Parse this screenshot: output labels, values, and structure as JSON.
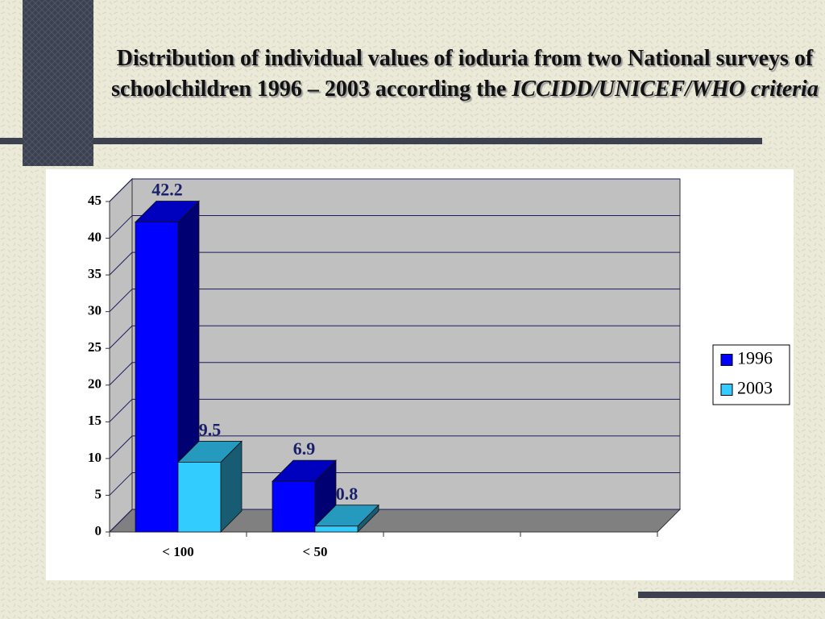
{
  "chart_data": {
    "type": "bar3d",
    "title": {
      "text": "Distribution of individual values of ioduria from two National surveys of schoolchildren 1996 – 2003 according the",
      "emphasis": "ICCIDD/UNICEF/WHO criteria"
    },
    "categories": [
      "< 100",
      "< 50",
      null,
      null
    ],
    "series": [
      {
        "name": "1996",
        "color": "#0000ff",
        "values": [
          42.2,
          6.9,
          null,
          null
        ]
      },
      {
        "name": "2003",
        "color": "#33ccff",
        "values": [
          9.5,
          0.8,
          null,
          null
        ]
      }
    ],
    "ylim": [
      0,
      45
    ],
    "yticks": [
      0,
      5,
      10,
      15,
      20,
      25,
      30,
      35,
      40,
      45
    ],
    "grid": true,
    "legend": "right"
  }
}
